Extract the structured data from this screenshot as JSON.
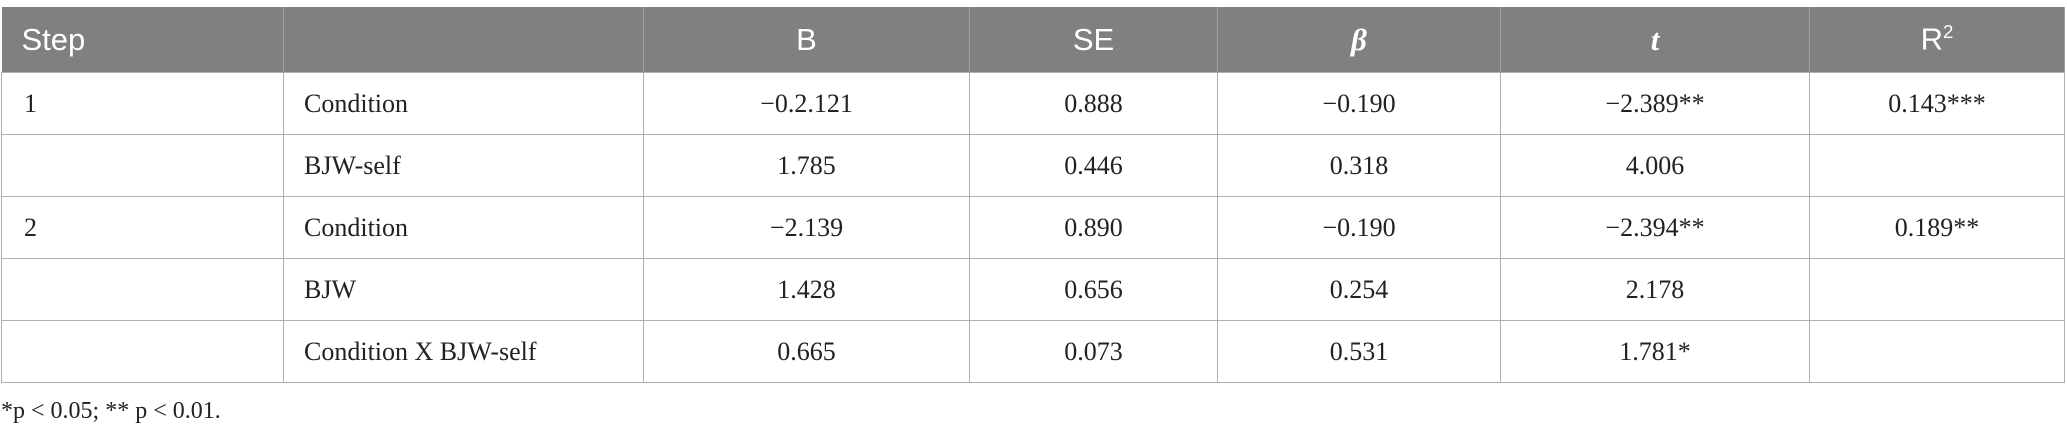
{
  "table": {
    "header": [
      {
        "text": "Step"
      },
      {
        "text": null
      },
      {
        "text": "B"
      },
      {
        "text": "SE"
      },
      {
        "text": "β",
        "italic": true
      },
      {
        "text": "t",
        "italic": true
      },
      {
        "text": "R",
        "sup": "2"
      }
    ],
    "rows": [
      [
        "1",
        "Condition",
        "−0.2.121",
        "0.888",
        "−0.190",
        "−2.389**",
        "0.143***"
      ],
      [
        null,
        "BJW-self",
        "1.785",
        "0.446",
        "0.318",
        "4.006",
        null
      ],
      [
        "2",
        "Condition",
        "−2.139",
        "0.890",
        "−0.190",
        "−2.394**",
        "0.189**"
      ],
      [
        null,
        "BJW",
        "1.428",
        "0.656",
        "0.254",
        "2.178",
        null
      ],
      [
        null,
        "Condition X BJW-self",
        "0.665",
        "0.073",
        "0.531",
        "1.781*",
        null
      ]
    ]
  },
  "footnote": "*p < 0.05; ** p < 0.01."
}
